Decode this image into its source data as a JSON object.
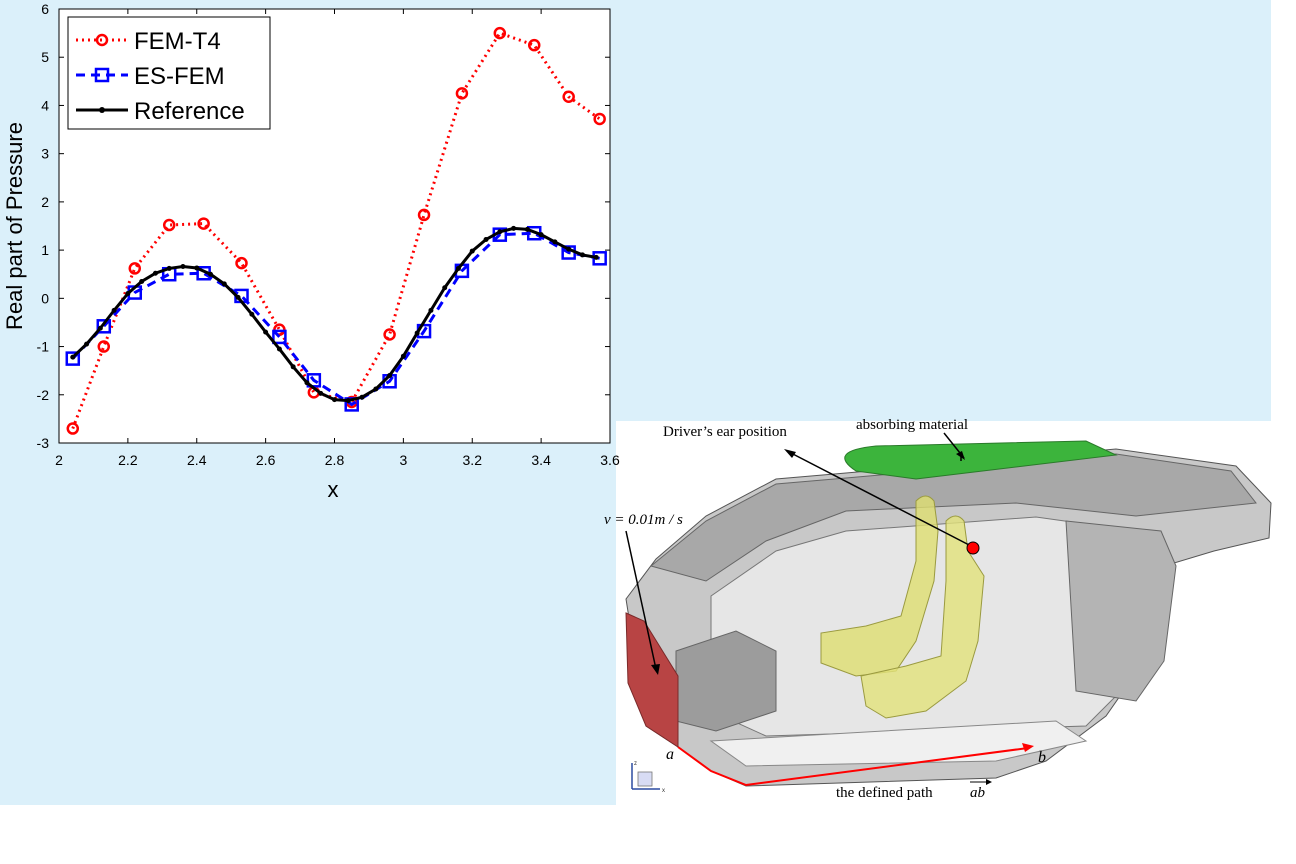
{
  "chart_data": {
    "type": "line",
    "xlabel": "x",
    "ylabel": "Real part of Pressure",
    "xlim": [
      2,
      3.6
    ],
    "ylim": [
      -3,
      6
    ],
    "xticks": [
      "2",
      "2.2",
      "2.4",
      "2.6",
      "2.8",
      "3",
      "3.2",
      "3.4",
      "3.6"
    ],
    "yticks": [
      "-3",
      "-2",
      "-1",
      "0",
      "1",
      "2",
      "3",
      "4",
      "5",
      "6"
    ],
    "legend_position": "top-left",
    "series": [
      {
        "name": "FEM-T4",
        "color": "#ff0000",
        "style": "dotted",
        "marker": "circle",
        "x": [
          2.04,
          2.13,
          2.22,
          2.32,
          2.42,
          2.53,
          2.64,
          2.74,
          2.85,
          2.96,
          3.06,
          3.17,
          3.28,
          3.38,
          3.48,
          3.57
        ],
        "y": [
          -2.7,
          -1.0,
          0.62,
          1.52,
          1.55,
          0.73,
          -0.65,
          -1.95,
          -2.15,
          -0.75,
          1.73,
          4.25,
          5.5,
          5.25,
          4.18,
          3.72
        ]
      },
      {
        "name": "ES-FEM",
        "color": "#0000ff",
        "style": "dashed",
        "marker": "square",
        "x": [
          2.04,
          2.13,
          2.22,
          2.32,
          2.42,
          2.53,
          2.64,
          2.74,
          2.85,
          2.96,
          3.06,
          3.17,
          3.28,
          3.38,
          3.48,
          3.57
        ],
        "y": [
          -1.25,
          -0.58,
          0.12,
          0.5,
          0.52,
          0.05,
          -0.8,
          -1.7,
          -2.2,
          -1.72,
          -0.68,
          0.57,
          1.32,
          1.35,
          0.95,
          0.83
        ]
      },
      {
        "name": "Reference",
        "color": "#000000",
        "style": "solid",
        "marker": "dot",
        "x": [
          2.04,
          2.08,
          2.12,
          2.16,
          2.2,
          2.24,
          2.28,
          2.32,
          2.36,
          2.4,
          2.44,
          2.48,
          2.52,
          2.56,
          2.6,
          2.64,
          2.68,
          2.72,
          2.76,
          2.8,
          2.84,
          2.88,
          2.92,
          2.96,
          3.0,
          3.04,
          3.08,
          3.12,
          3.16,
          3.2,
          3.24,
          3.28,
          3.32,
          3.36,
          3.4,
          3.44,
          3.48,
          3.52,
          3.56
        ],
        "y": [
          -1.22,
          -0.95,
          -0.62,
          -0.25,
          0.1,
          0.35,
          0.52,
          0.62,
          0.66,
          0.63,
          0.5,
          0.3,
          0.02,
          -0.33,
          -0.7,
          -1.05,
          -1.42,
          -1.75,
          -1.97,
          -2.1,
          -2.12,
          -2.05,
          -1.88,
          -1.6,
          -1.2,
          -0.72,
          -0.25,
          0.22,
          0.62,
          0.98,
          1.22,
          1.38,
          1.45,
          1.43,
          1.32,
          1.17,
          1.02,
          0.9,
          0.85
        ]
      }
    ]
  },
  "car_figure": {
    "ear_label": "Driver’s ear position",
    "absorbing_label": "absorbing     material",
    "velocity_label": "v = 0.01m / s",
    "point_a": "a",
    "point_b": "b",
    "path_label": "the defined path",
    "path_vector": "ab",
    "axis_z": "z",
    "axis_x": "x",
    "colors": {
      "absorbing": "#3cb43c",
      "velocity_wall": "#b84444",
      "seat": "#dede70",
      "path": "#ff0000",
      "ear_marker": "#ff0000",
      "cabin": "#c8c8c8"
    }
  }
}
